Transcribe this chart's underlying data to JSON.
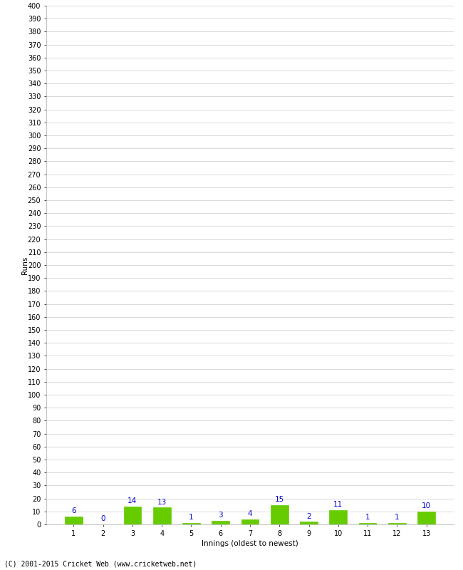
{
  "title": "",
  "categories": [
    1,
    2,
    3,
    4,
    5,
    6,
    7,
    8,
    9,
    10,
    11,
    12,
    13
  ],
  "values": [
    6,
    0,
    14,
    13,
    1,
    3,
    4,
    15,
    2,
    11,
    1,
    1,
    10
  ],
  "bar_color": "#66cc00",
  "bar_edge_color": "#66cc00",
  "label_color": "#0000cc",
  "xlabel": "Innings (oldest to newest)",
  "ylabel": "Runs",
  "ylim": [
    0,
    400
  ],
  "background_color": "#ffffff",
  "grid_color": "#cccccc",
  "footer": "(C) 2001-2015 Cricket Web (www.cricketweb.net)",
  "label_fontsize": 7.5,
  "tick_fontsize": 7.0,
  "footer_fontsize": 7.0,
  "value_label_fontsize": 7.5
}
